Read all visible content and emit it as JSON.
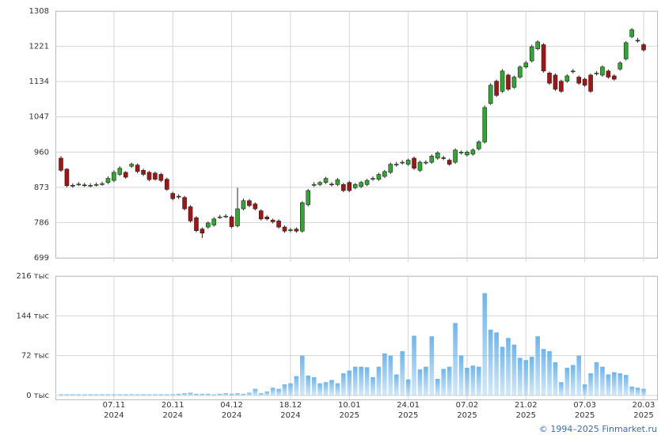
{
  "chart_data": [
    {
      "type": "candlestick",
      "ylim": [
        699,
        1308
      ],
      "yticks": [
        699,
        786,
        873,
        960,
        1047,
        1134,
        1221,
        1308
      ],
      "grid": true,
      "up_color": "#2ea82e",
      "down_color": "#a51414",
      "open": [
        945,
        918,
        878,
        880,
        879,
        877,
        879,
        881,
        885,
        890,
        905,
        910,
        925,
        928,
        915,
        910,
        908,
        905,
        893,
        858,
        851,
        848,
        825,
        798,
        770,
        775,
        780,
        799,
        801,
        800,
        778,
        820,
        840,
        832,
        815,
        800,
        792,
        790,
        775,
        767,
        770,
        765,
        830,
        879,
        880,
        885,
        881,
        880,
        880,
        885,
        872,
        875,
        880,
        894,
        893,
        900,
        910,
        929,
        934,
        930,
        945,
        915,
        934,
        935,
        945,
        946,
        940,
        935,
        959,
        953,
        955,
        968,
        985,
        1080,
        1135,
        1110,
        1150,
        1120,
        1145,
        1170,
        1185,
        1215,
        1225,
        1155,
        1150,
        1135,
        1135,
        1159,
        1145,
        1140,
        1150,
        1154,
        1150,
        1160,
        1148,
        1165,
        1190,
        1245,
        1236,
        1225
      ],
      "high": [
        950,
        920,
        883,
        886,
        884,
        883,
        885,
        887,
        900,
        915,
        925,
        913,
        934,
        932,
        919,
        914,
        912,
        909,
        897,
        862,
        856,
        852,
        829,
        802,
        774,
        789,
        799,
        805,
        807,
        804,
        872,
        845,
        844,
        836,
        819,
        804,
        796,
        794,
        779,
        773,
        774,
        839,
        869,
        886,
        889,
        899,
        886,
        896,
        884,
        889,
        884,
        889,
        894,
        900,
        909,
        916,
        934,
        936,
        940,
        944,
        949,
        939,
        940,
        954,
        962,
        951,
        944,
        969,
        964,
        964,
        969,
        989,
        1075,
        1130,
        1139,
        1165,
        1154,
        1149,
        1174,
        1185,
        1225,
        1236,
        1229,
        1159,
        1154,
        1139,
        1152,
        1165,
        1149,
        1144,
        1154,
        1160,
        1174,
        1164,
        1152,
        1184,
        1234,
        1266,
        1242,
        1229
      ],
      "low": [
        911,
        873,
        872,
        876,
        874,
        873,
        875,
        877,
        881,
        886,
        901,
        894,
        921,
        908,
        901,
        888,
        889,
        886,
        864,
        841,
        844,
        816,
        786,
        762,
        748,
        771,
        776,
        795,
        797,
        772,
        774,
        816,
        824,
        816,
        791,
        791,
        784,
        771,
        761,
        762,
        761,
        761,
        826,
        874,
        876,
        881,
        875,
        876,
        861,
        861,
        868,
        871,
        876,
        889,
        889,
        896,
        906,
        924,
        929,
        926,
        916,
        911,
        929,
        931,
        941,
        940,
        926,
        931,
        954,
        949,
        951,
        964,
        981,
        1076,
        1096,
        1106,
        1111,
        1116,
        1141,
        1166,
        1181,
        1211,
        1156,
        1126,
        1111,
        1106,
        1131,
        1154,
        1126,
        1121,
        1106,
        1149,
        1146,
        1141,
        1136,
        1161,
        1186,
        1241,
        1230,
        1208
      ],
      "close": [
        915,
        877,
        877,
        881,
        878,
        878,
        880,
        882,
        895,
        910,
        920,
        898,
        930,
        912,
        905,
        892,
        893,
        890,
        868,
        845,
        849,
        820,
        790,
        766,
        760,
        785,
        795,
        800,
        802,
        776,
        820,
        840,
        828,
        820,
        795,
        795,
        788,
        775,
        765,
        768,
        765,
        835,
        865,
        880,
        885,
        895,
        880,
        892,
        865,
        865,
        880,
        885,
        890,
        895,
        905,
        912,
        930,
        930,
        935,
        940,
        920,
        935,
        935,
        950,
        958,
        945,
        930,
        965,
        960,
        960,
        965,
        985,
        1070,
        1125,
        1100,
        1160,
        1115,
        1145,
        1170,
        1180,
        1220,
        1232,
        1160,
        1130,
        1115,
        1110,
        1148,
        1160,
        1130,
        1125,
        1110,
        1155,
        1170,
        1145,
        1140,
        1180,
        1230,
        1262,
        1235,
        1212
      ]
    },
    {
      "type": "bar",
      "color": "#6db5ee",
      "ylim": [
        0,
        216
      ],
      "yticks": [
        {
          "value": 0,
          "label": "0 тыс"
        },
        {
          "value": 72,
          "label": "72 тыс"
        },
        {
          "value": 144,
          "label": "144 тыс"
        },
        {
          "value": 216,
          "label": "216 тыс"
        }
      ],
      "values": [
        2,
        2,
        2,
        2,
        2,
        2,
        2,
        2,
        2,
        2,
        2,
        2,
        2,
        2,
        2,
        2,
        2,
        2,
        2,
        2,
        3,
        4,
        5,
        3,
        3,
        3,
        2,
        3,
        4,
        3,
        4,
        3,
        5,
        12,
        4,
        7,
        14,
        12,
        20,
        22,
        35,
        72,
        36,
        33,
        22,
        24,
        28,
        22,
        40,
        45,
        52,
        52,
        51,
        33,
        52,
        76,
        72,
        38,
        80,
        29,
        108,
        47,
        52,
        107,
        30,
        48,
        52,
        131,
        72,
        50,
        54,
        52,
        185,
        119,
        114,
        88,
        104,
        92,
        68,
        64,
        70,
        107,
        84,
        80,
        60,
        24,
        50,
        55,
        72,
        20,
        40,
        60,
        52,
        38,
        42,
        40,
        37,
        16,
        14,
        12
      ],
      "xticks": [
        {
          "value": 9,
          "label": [
            "07.11",
            "2024"
          ]
        },
        {
          "value": 19,
          "label": [
            "20.11",
            "2024"
          ]
        },
        {
          "value": 29,
          "label": [
            "04.12",
            "2024"
          ]
        },
        {
          "value": 39,
          "label": [
            "18.12",
            "2024"
          ]
        },
        {
          "value": 49,
          "label": [
            "10.01",
            "2025"
          ]
        },
        {
          "value": 59,
          "label": [
            "24.01",
            "2025"
          ]
        },
        {
          "value": 69,
          "label": [
            "07.02",
            "2025"
          ]
        },
        {
          "value": 79,
          "label": [
            "21.02",
            "2025"
          ]
        },
        {
          "value": 89,
          "label": [
            "07.03",
            "2025"
          ]
        },
        {
          "value": 99,
          "label": [
            "20.03",
            "2025"
          ]
        }
      ]
    }
  ],
  "footer": "© 1994–2025 Finmarket.ru"
}
